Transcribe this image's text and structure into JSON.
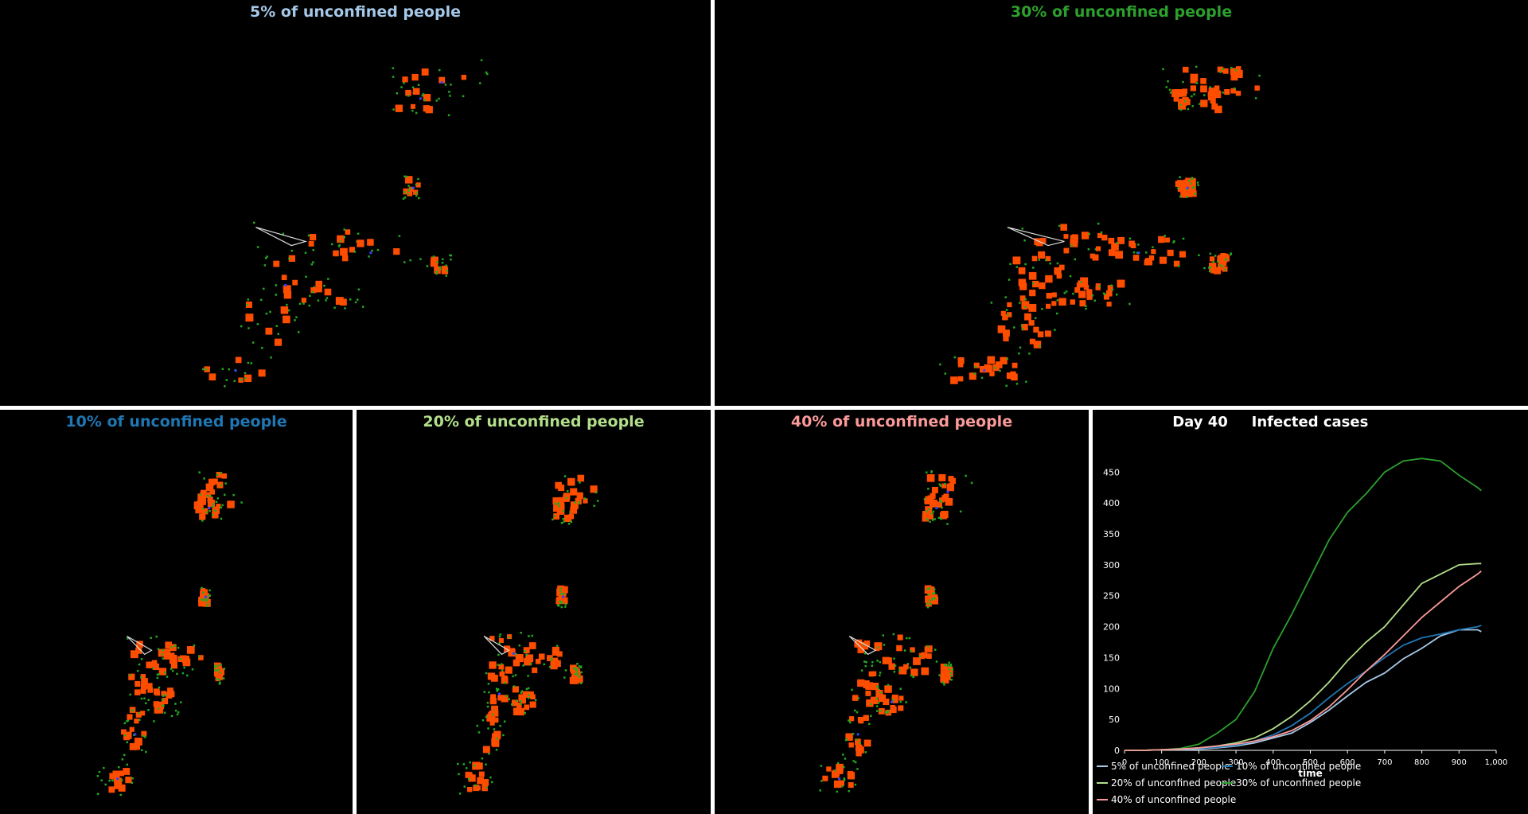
{
  "panels": [
    {
      "id": "p5",
      "title": "5% of unconfined people",
      "color": "#a6c8e8",
      "density": 1
    },
    {
      "id": "p30",
      "title": "30% of unconfined people",
      "color": "#2ca02c",
      "density": 3
    },
    {
      "id": "p10",
      "title": "10% of unconfined people",
      "color": "#1f77b4",
      "density": 2
    },
    {
      "id": "p20",
      "title": "20% of unconfined people",
      "color": "#b2df8a",
      "density": 2
    },
    {
      "id": "p40",
      "title": "40% of unconfined people",
      "color": "#fb9a99",
      "density": 2
    }
  ],
  "colors": {
    "background": "#000000",
    "infected_square": "#ff4d00",
    "susceptible_dot": "#22aa22",
    "recovered_dot": "#3344ff",
    "boundary": "#dddddd",
    "divider": "#ffffff"
  },
  "chart": {
    "day_label": "Day 40",
    "title": "Infected cases"
  },
  "chart_data": {
    "type": "line",
    "title": "Infected cases",
    "xlabel": "time",
    "ylabel": "",
    "xlim": [
      0,
      1000
    ],
    "ylim": [
      0,
      480
    ],
    "xticks": [
      "0",
      "100",
      "200",
      "300",
      "400",
      "500",
      "600",
      "700",
      "800",
      "900",
      "1,000"
    ],
    "yticks": [
      "0",
      "50",
      "100",
      "150",
      "200",
      "250",
      "300",
      "350",
      "400",
      "450"
    ],
    "legend_position": "bottom",
    "x": [
      0,
      50,
      100,
      150,
      200,
      250,
      300,
      350,
      400,
      450,
      500,
      550,
      600,
      650,
      700,
      750,
      800,
      850,
      900,
      950,
      960
    ],
    "series": [
      {
        "name": "5% of unconfined people",
        "color": "#a6c8e8",
        "values": [
          0,
          0,
          1,
          1,
          2,
          4,
          7,
          12,
          20,
          28,
          45,
          65,
          88,
          110,
          125,
          148,
          165,
          185,
          195,
          195,
          192
        ]
      },
      {
        "name": "10% of unconfined people",
        "color": "#1f77b4",
        "values": [
          0,
          0,
          1,
          2,
          3,
          5,
          8,
          15,
          25,
          40,
          60,
          85,
          108,
          128,
          150,
          170,
          182,
          188,
          195,
          200,
          202
        ]
      },
      {
        "name": "20% of unconfined people",
        "color": "#b2df8a",
        "values": [
          0,
          0,
          1,
          2,
          4,
          7,
          12,
          20,
          35,
          55,
          80,
          110,
          145,
          175,
          200,
          235,
          270,
          285,
          300,
          302,
          302
        ]
      },
      {
        "name": "30% of unconfined people",
        "color": "#2ca02c",
        "values": [
          0,
          0,
          1,
          3,
          10,
          28,
          50,
          95,
          165,
          220,
          280,
          340,
          385,
          415,
          450,
          468,
          472,
          468,
          445,
          425,
          420
        ]
      },
      {
        "name": "40% of unconfined people",
        "color": "#fb9a99",
        "values": [
          0,
          0,
          1,
          2,
          4,
          7,
          10,
          15,
          22,
          32,
          48,
          70,
          98,
          128,
          155,
          185,
          215,
          240,
          265,
          285,
          290
        ]
      }
    ]
  }
}
